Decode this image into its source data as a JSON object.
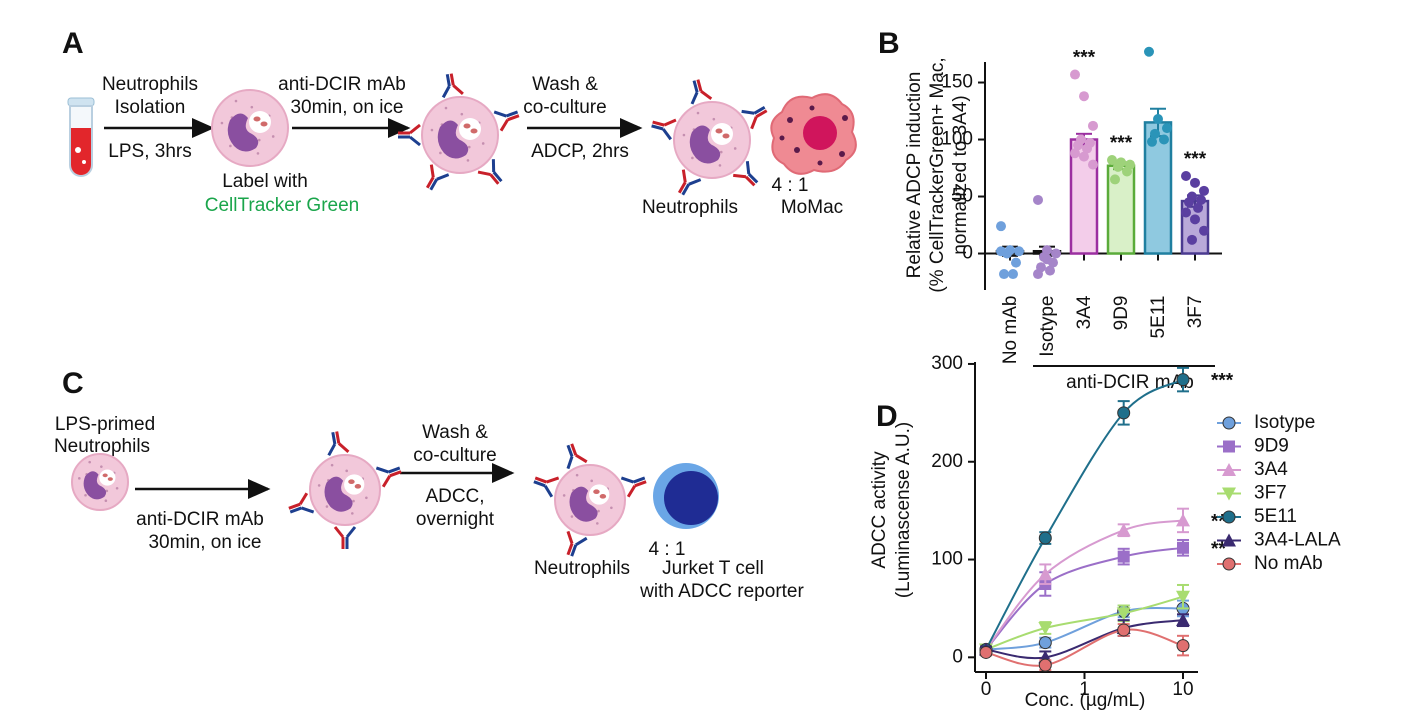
{
  "panel_a": {
    "label": "A",
    "step1_top": "Neutrophils",
    "step1_mid": "Isolation",
    "step1_bottom": "LPS, 3hrs",
    "label_line1": "Label with",
    "label_line2": "CellTracker Green",
    "step2_top": "anti-DCIR mAb",
    "step2_mid": "30min, on ice",
    "step3_top": "Wash &",
    "step3_mid": "co-culture",
    "step3_bottom": "ADCP, 2hrs",
    "ratio": "4 : 1",
    "left_cell": "Neutrophils",
    "right_cell": "MoMac"
  },
  "panel_c": {
    "label": "C",
    "start_line1": "LPS-primed",
    "start_line2": "Neutrophils",
    "step1_top": "anti-DCIR mAb",
    "step1_bottom": "30min, on ice",
    "step2_top": "Wash &",
    "step2_mid": "co-culture",
    "step2_bottom1": "ADCC,",
    "step2_bottom2": "overnight",
    "ratio": "4 : 1",
    "left_cell": "Neutrophils",
    "right_cell_line1": "Jurket T cell",
    "right_cell_line2": "with ADCC reporter"
  },
  "chart_data": [
    {
      "type": "bar",
      "panel_label": "B",
      "ylabel": [
        "Relative ADCP induction",
        "(% CellTrackerGreen+ Mac,",
        "normalized to 3A4)"
      ],
      "categories": [
        "No mAb",
        "Isotype",
        "3A4",
        "9D9",
        "5E11",
        "3F7"
      ],
      "values": [
        2,
        2,
        100,
        77,
        115,
        46
      ],
      "errors": [
        4,
        4,
        5,
        3,
        12,
        5
      ],
      "points": [
        [
          24,
          3,
          2,
          0,
          -8,
          -18,
          -18,
          2
        ],
        [
          47,
          3,
          0,
          -3,
          -8,
          -12,
          -15,
          -18,
          -5
        ],
        [
          157,
          138,
          112,
          100,
          97,
          95,
          92,
          88,
          85,
          78
        ],
        [
          82,
          80,
          78,
          76,
          72,
          65
        ],
        [
          177,
          118,
          110,
          105,
          100,
          98
        ],
        [
          68,
          62,
          55,
          50,
          47,
          45,
          40,
          36,
          30,
          20,
          12
        ]
      ],
      "fill_colors": [
        "#ffffff",
        "#ffffff",
        "#f3cdea",
        "#d9f0c8",
        "#8fc9e0",
        "#b9a9d9"
      ],
      "edge_colors": [
        "#111111",
        "#111111",
        "#9b2fa0",
        "#5aab3a",
        "#1f7fa0",
        "#4a3a90"
      ],
      "point_colors": [
        "#6fa0dc",
        "#a585c9",
        "#d79ad0",
        "#9ed27a",
        "#2a94b8",
        "#5a3fa0"
      ],
      "significance": [
        null,
        null,
        "***",
        "***",
        null,
        "***"
      ],
      "group_label": "anti-DCIR mAb",
      "ylim": [
        -32,
        168
      ],
      "yticks": [
        0,
        50,
        100,
        150
      ]
    },
    {
      "type": "line",
      "panel_label": "D",
      "ylabel": [
        "ADCC activity",
        "(Luminascense A.U.)"
      ],
      "xlabel": "Conc. (µg/mL)",
      "x": [
        0,
        0.4,
        2.5,
        10
      ],
      "xscale": "log",
      "xlim": [
        0,
        10
      ],
      "xticks": [
        0,
        1,
        10
      ],
      "ylim": [
        -15,
        302
      ],
      "yticks": [
        0,
        100,
        200,
        300
      ],
      "series": [
        {
          "name": "Isotype",
          "color": "#6fa0dc",
          "marker": "circle",
          "values": [
            8,
            15,
            47,
            50
          ],
          "errors": [
            3,
            5,
            6,
            8
          ]
        },
        {
          "name": "9D9",
          "color": "#9b6fc8",
          "marker": "square",
          "values": [
            8,
            75,
            103,
            112
          ],
          "errors": [
            3,
            12,
            8,
            8
          ],
          "significance": "**"
        },
        {
          "name": "3A4",
          "color": "#d79ad0",
          "marker": "triangle-up",
          "values": [
            8,
            85,
            130,
            140
          ],
          "errors": [
            3,
            10,
            6,
            12
          ],
          "significance": "**"
        },
        {
          "name": "3F7",
          "color": "#a8dc70",
          "marker": "triangle-down",
          "values": [
            8,
            30,
            45,
            62
          ],
          "errors": [
            3,
            6,
            8,
            12
          ]
        },
        {
          "name": "5E11",
          "color": "#1f6f8b",
          "marker": "circle",
          "values": [
            8,
            122,
            250,
            284
          ],
          "errors": [
            3,
            6,
            12,
            12
          ],
          "significance": "***"
        },
        {
          "name": "3A4-LALA",
          "color": "#3a2a70",
          "marker": "triangle-up",
          "values": [
            8,
            0,
            30,
            38
          ],
          "errors": [
            3,
            6,
            8,
            6
          ]
        },
        {
          "name": "No mAb",
          "color": "#e07070",
          "marker": "circle",
          "values": [
            5,
            -8,
            28,
            12
          ],
          "errors": [
            3,
            5,
            6,
            10
          ]
        }
      ]
    }
  ]
}
